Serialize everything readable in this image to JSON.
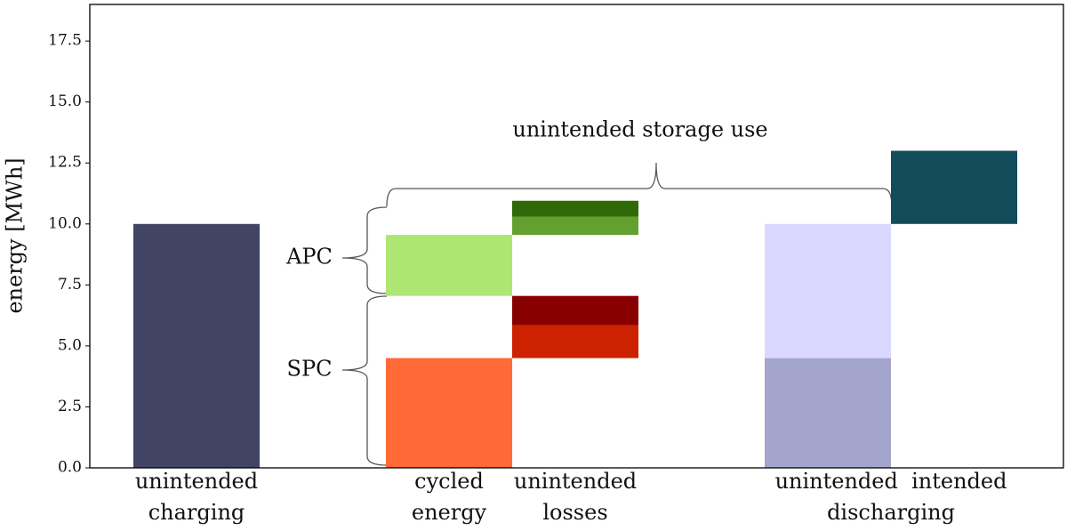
{
  "chart_data": {
    "type": "floating-bar",
    "ylabel": "energy [MWh]",
    "ylim": [
      0,
      19
    ],
    "yticks": [
      {
        "value": 0,
        "label": "0.0"
      },
      2.5,
      {
        "value": 5,
        "label": "5.0"
      },
      7.5,
      {
        "value": 10,
        "label": "10.0"
      },
      12.5,
      {
        "value": 15,
        "label": "15.0"
      },
      17.5
    ],
    "xlim": [
      -0.845,
      6.866
    ],
    "xticks": [
      {
        "value": 0,
        "label": "unintended\ncharging"
      },
      {
        "value": 2,
        "label": "cycled\nenergy"
      },
      {
        "value": 3,
        "label": "unintended\nlosses"
      },
      {
        "value": 5.5,
        "label": "unintended  intended\ndischarging"
      }
    ],
    "bar_width": 1,
    "segments": [
      {
        "x": 0,
        "base": 0,
        "value": 10,
        "color": "#414464"
      },
      {
        "x": 2,
        "base": 0,
        "value": 4.5,
        "color": "#ff6a37"
      },
      {
        "x": 3,
        "base": 4.5,
        "value": 1.35,
        "color": "#cc2200"
      },
      {
        "x": 3,
        "base": 5.85,
        "value": 1.2,
        "color": "#880000"
      },
      {
        "x": 2,
        "base": 7.05,
        "value": 2.5,
        "color": "#aee673"
      },
      {
        "x": 3,
        "base": 9.55,
        "value": 0.75,
        "color": "#64a030"
      },
      {
        "x": 3,
        "base": 10.3,
        "value": 0.65,
        "color": "#2f6a08"
      },
      {
        "x": 5,
        "base": 0,
        "value": 4.5,
        "color": "#a3a5cc"
      },
      {
        "x": 5,
        "base": 4.5,
        "value": 5.5,
        "color": "#dad8ff"
      },
      {
        "x": 6,
        "base": 10,
        "value": 3,
        "color": "#124b5a"
      }
    ],
    "annotations": [
      "unintended storage use",
      "APC",
      "SPC"
    ]
  }
}
